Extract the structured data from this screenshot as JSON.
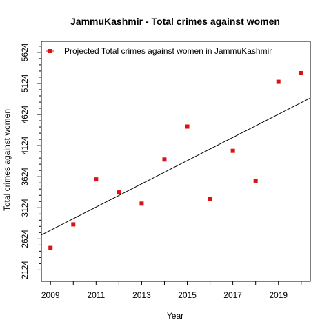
{
  "chart_data": {
    "type": "scatter",
    "title": "JammuKashmir  -  Total crimes against women",
    "xlabel": "Year",
    "ylabel": "Total crimes against women",
    "x_ticks": [
      "2009",
      "2011",
      "2013",
      "2015",
      "2017",
      "2019"
    ],
    "y_ticks": [
      "2124",
      "2624",
      "3124",
      "3624",
      "4124",
      "4624",
      "5124",
      "5624"
    ],
    "xlim": [
      2008.6,
      2020.4
    ],
    "ylim": [
      1940,
      5800
    ],
    "grid": false,
    "legend_position": "top-left",
    "series": [
      {
        "name": "Projected  Total crimes against women  in  JammuKashmir",
        "color": "#dd1111",
        "marker": "square",
        "x": [
          2009,
          2010,
          2011,
          2012,
          2013,
          2014,
          2015,
          2016,
          2017,
          2018,
          2019,
          2020
        ],
        "y": [
          2477,
          2856,
          3580,
          3370,
          3190,
          3900,
          4430,
          3260,
          4040,
          3560,
          5150,
          5290
        ]
      }
    ],
    "trend_line": {
      "x": [
        2008.6,
        2020.4
      ],
      "y": [
        2687,
        4890
      ],
      "color": "#000000"
    }
  }
}
